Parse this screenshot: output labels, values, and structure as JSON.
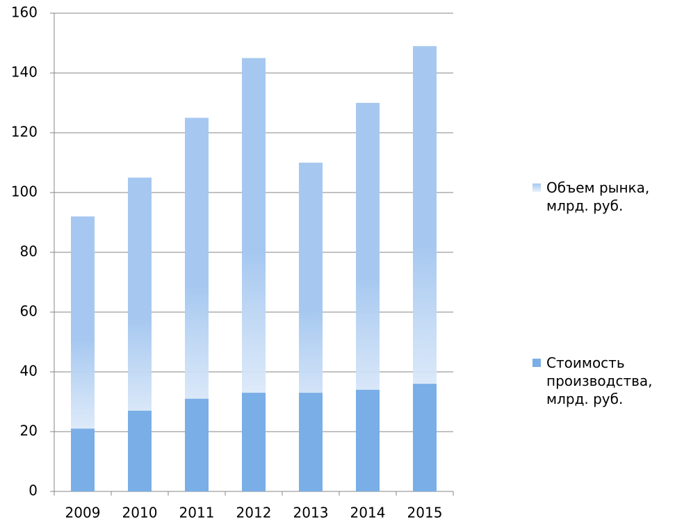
{
  "chart_data": {
    "type": "bar",
    "overlap": true,
    "categories": [
      "2009",
      "2010",
      "2011",
      "2012",
      "2013",
      "2014",
      "2015"
    ],
    "series": [
      {
        "name": "Объем рынка, млрд. руб.",
        "color": "#a6c8f0",
        "values": [
          92,
          105,
          125,
          145,
          110,
          130,
          149
        ]
      },
      {
        "name": "Стоимость производства, млрд. руб.",
        "color": "#7aaee6",
        "values": [
          21,
          27,
          31,
          33,
          33,
          34,
          36
        ]
      }
    ],
    "ylim": [
      0,
      160
    ],
    "yticks": [
      0,
      20,
      40,
      60,
      80,
      100,
      120,
      140,
      160
    ],
    "grid": true,
    "legend": "right"
  }
}
